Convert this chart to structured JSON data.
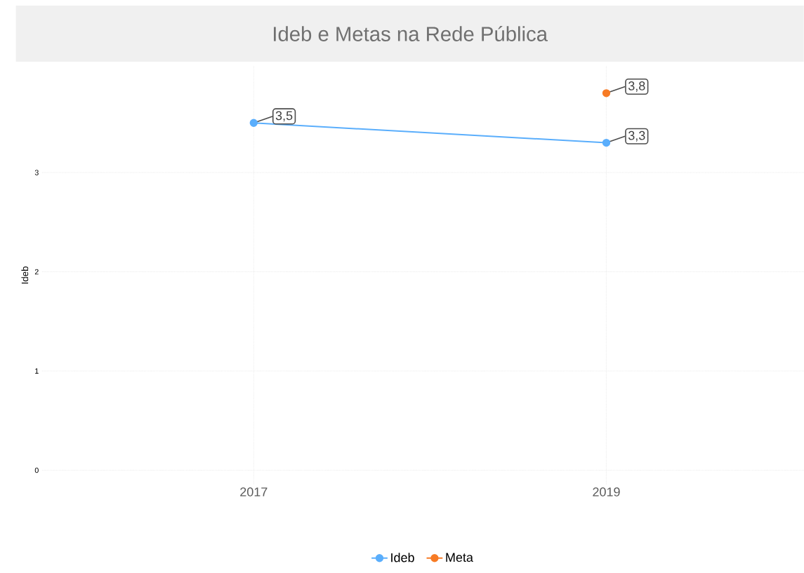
{
  "chart_data": {
    "type": "line",
    "title": "Ideb e Metas na Rede Pública",
    "ylabel": "Ideb",
    "categories": [
      "2017",
      "2019"
    ],
    "series": [
      {
        "name": "Ideb",
        "color": "#5aaefc",
        "values": [
          3.5,
          3.3
        ],
        "value_labels": [
          "3,5",
          "3,3"
        ]
      },
      {
        "name": "Meta",
        "color": "#f77b25",
        "values": [
          null,
          3.8
        ],
        "value_labels": [
          null,
          "3,8"
        ]
      }
    ],
    "ylim": [
      -0.14,
      4.07
    ],
    "yticks": [
      0,
      1,
      2,
      3
    ],
    "grid": true,
    "legend": "bottom",
    "marker": "circle",
    "line_style": "solid"
  }
}
